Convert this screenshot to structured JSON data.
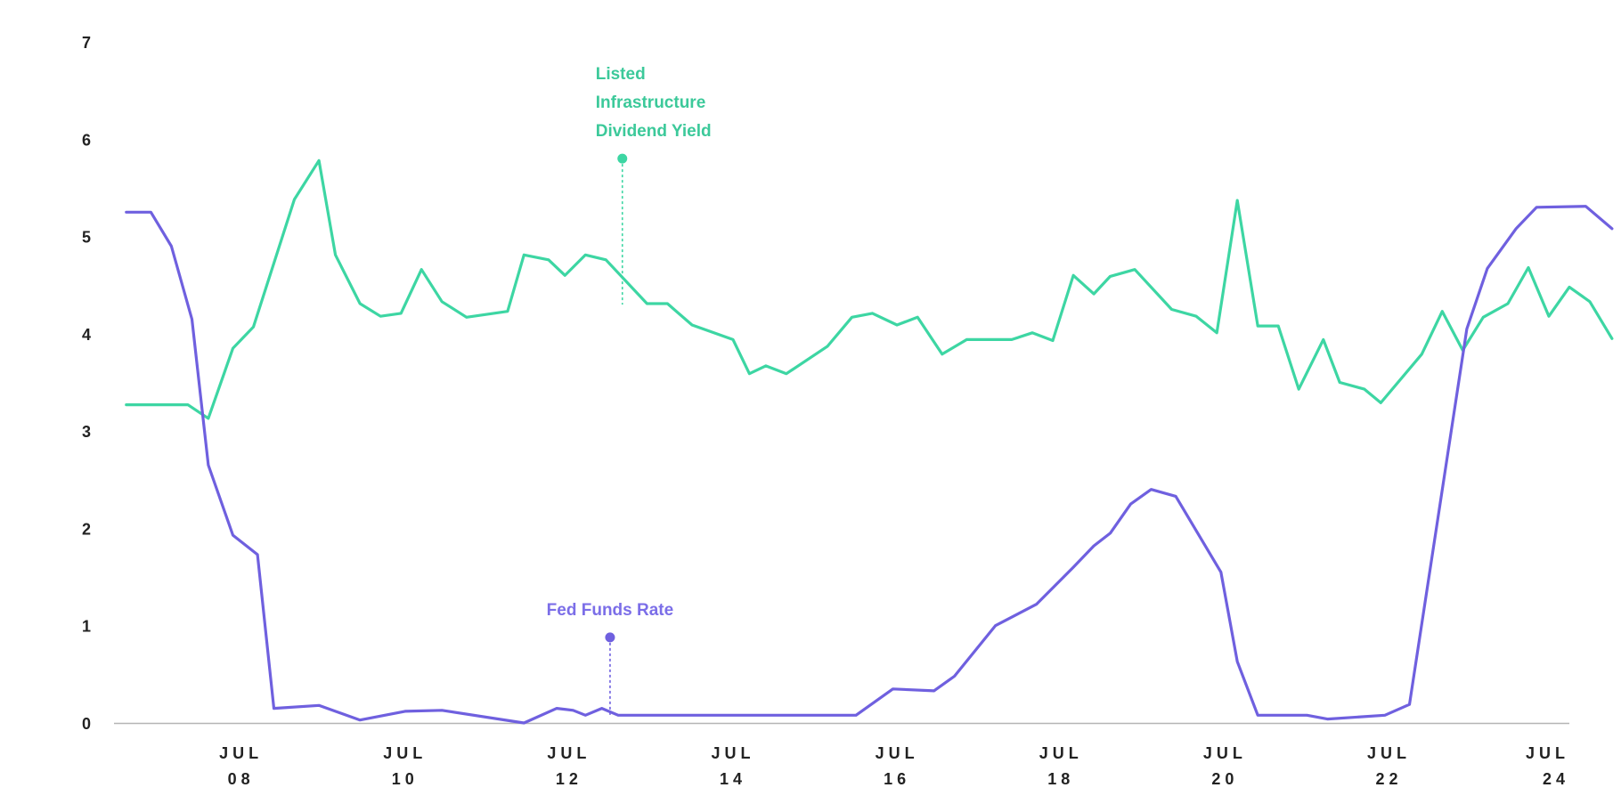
{
  "chart_data": {
    "type": "line",
    "y_ticks": [
      "0",
      "1",
      "2",
      "3",
      "4",
      "5",
      "6",
      "7"
    ],
    "ylim": [
      0,
      7
    ],
    "x_ticks": [
      {
        "x": 2008,
        "line1": "JUL",
        "line2": "08"
      },
      {
        "x": 2010,
        "line1": "JUL",
        "line2": "10"
      },
      {
        "x": 2012,
        "line1": "JUL",
        "line2": "12"
      },
      {
        "x": 2014,
        "line1": "JUL",
        "line2": "14"
      },
      {
        "x": 2016,
        "line1": "JUL",
        "line2": "16"
      },
      {
        "x": 2018,
        "line1": "JUL",
        "line2": "18"
      },
      {
        "x": 2020,
        "line1": "JUL",
        "line2": "20"
      },
      {
        "x": 2022,
        "line1": "JUL",
        "line2": "22"
      },
      {
        "x": 2024,
        "line1": "JUL",
        "line2": "24"
      }
    ],
    "xlim": [
      2006.45,
      2024.2
    ],
    "grid": false,
    "series": [
      {
        "name": "Listed Infrastructure Dividend Yield",
        "label_lines": [
          "Listed",
          "Infrastructure",
          "Dividend Yield"
        ],
        "color": "#3dd6a3",
        "label_color": "#3cc99a",
        "callout": {
          "x": 2012.65,
          "y": 4.3,
          "label_y": 5.8
        },
        "points": [
          [
            2006.6,
            3.27
          ],
          [
            2006.9,
            3.27
          ],
          [
            2007.15,
            3.27
          ],
          [
            2007.35,
            3.27
          ],
          [
            2007.6,
            3.13
          ],
          [
            2007.9,
            3.85
          ],
          [
            2008.15,
            4.07
          ],
          [
            2008.65,
            5.38
          ],
          [
            2008.95,
            5.78
          ],
          [
            2009.15,
            4.81
          ],
          [
            2009.45,
            4.31
          ],
          [
            2009.7,
            4.18
          ],
          [
            2009.95,
            4.21
          ],
          [
            2010.2,
            4.66
          ],
          [
            2010.45,
            4.33
          ],
          [
            2010.75,
            4.17
          ],
          [
            2011.25,
            4.23
          ],
          [
            2011.45,
            4.81
          ],
          [
            2011.75,
            4.76
          ],
          [
            2011.95,
            4.6
          ],
          [
            2012.2,
            4.81
          ],
          [
            2012.45,
            4.76
          ],
          [
            2012.95,
            4.31
          ],
          [
            2013.2,
            4.31
          ],
          [
            2013.5,
            4.09
          ],
          [
            2014.0,
            3.94
          ],
          [
            2014.2,
            3.59
          ],
          [
            2014.4,
            3.67
          ],
          [
            2014.65,
            3.59
          ],
          [
            2015.15,
            3.87
          ],
          [
            2015.45,
            4.17
          ],
          [
            2015.7,
            4.21
          ],
          [
            2016.0,
            4.09
          ],
          [
            2016.25,
            4.17
          ],
          [
            2016.55,
            3.79
          ],
          [
            2016.85,
            3.94
          ],
          [
            2017.4,
            3.94
          ],
          [
            2017.65,
            4.01
          ],
          [
            2017.9,
            3.93
          ],
          [
            2018.15,
            4.6
          ],
          [
            2018.4,
            4.41
          ],
          [
            2018.6,
            4.59
          ],
          [
            2018.9,
            4.66
          ],
          [
            2019.35,
            4.25
          ],
          [
            2019.65,
            4.18
          ],
          [
            2019.9,
            4.01
          ],
          [
            2020.15,
            5.37
          ],
          [
            2020.4,
            4.08
          ],
          [
            2020.65,
            4.08
          ],
          [
            2020.9,
            3.43
          ],
          [
            2021.2,
            3.94
          ],
          [
            2021.4,
            3.5
          ],
          [
            2021.7,
            3.43
          ],
          [
            2021.9,
            3.29
          ],
          [
            2022.4,
            3.79
          ],
          [
            2022.65,
            4.23
          ],
          [
            2022.9,
            3.83
          ],
          [
            2023.15,
            4.17
          ],
          [
            2023.45,
            4.31
          ],
          [
            2023.7,
            4.68
          ],
          [
            2023.95,
            4.18
          ],
          [
            2024.2,
            4.48
          ],
          [
            2024.45,
            4.33
          ],
          [
            2024.72,
            3.95
          ]
        ]
      },
      {
        "name": "Fed Funds Rate",
        "label_lines": [
          "Fed Funds Rate"
        ],
        "color": "#6f60df",
        "label_color": "#7b6ee8",
        "callout": {
          "x": 2012.5,
          "y": 0.08,
          "label_y": 0.88
        },
        "points": [
          [
            2006.6,
            5.25
          ],
          [
            2006.9,
            5.25
          ],
          [
            2007.15,
            4.9
          ],
          [
            2007.4,
            4.15
          ],
          [
            2007.6,
            2.65
          ],
          [
            2007.9,
            1.93
          ],
          [
            2008.2,
            1.73
          ],
          [
            2008.4,
            0.15
          ],
          [
            2008.95,
            0.18
          ],
          [
            2009.45,
            0.03
          ],
          [
            2010.0,
            0.12
          ],
          [
            2010.45,
            0.13
          ],
          [
            2011.45,
            0.0
          ],
          [
            2011.85,
            0.15
          ],
          [
            2012.05,
            0.13
          ],
          [
            2012.2,
            0.08
          ],
          [
            2012.4,
            0.15
          ],
          [
            2012.6,
            0.08
          ],
          [
            2015.5,
            0.08
          ],
          [
            2015.95,
            0.35
          ],
          [
            2016.45,
            0.33
          ],
          [
            2016.7,
            0.48
          ],
          [
            2017.2,
            1.0
          ],
          [
            2017.7,
            1.22
          ],
          [
            2018.15,
            1.6
          ],
          [
            2018.4,
            1.82
          ],
          [
            2018.6,
            1.95
          ],
          [
            2018.85,
            2.25
          ],
          [
            2019.1,
            2.4
          ],
          [
            2019.4,
            2.33
          ],
          [
            2019.95,
            1.55
          ],
          [
            2020.15,
            0.63
          ],
          [
            2020.4,
            0.08
          ],
          [
            2021.0,
            0.08
          ],
          [
            2021.25,
            0.04
          ],
          [
            2021.95,
            0.08
          ],
          [
            2022.25,
            0.19
          ],
          [
            2022.95,
            4.05
          ],
          [
            2023.2,
            4.67
          ],
          [
            2023.55,
            5.08
          ],
          [
            2023.8,
            5.3
          ],
          [
            2024.4,
            5.31
          ],
          [
            2024.72,
            5.08
          ]
        ]
      }
    ]
  }
}
